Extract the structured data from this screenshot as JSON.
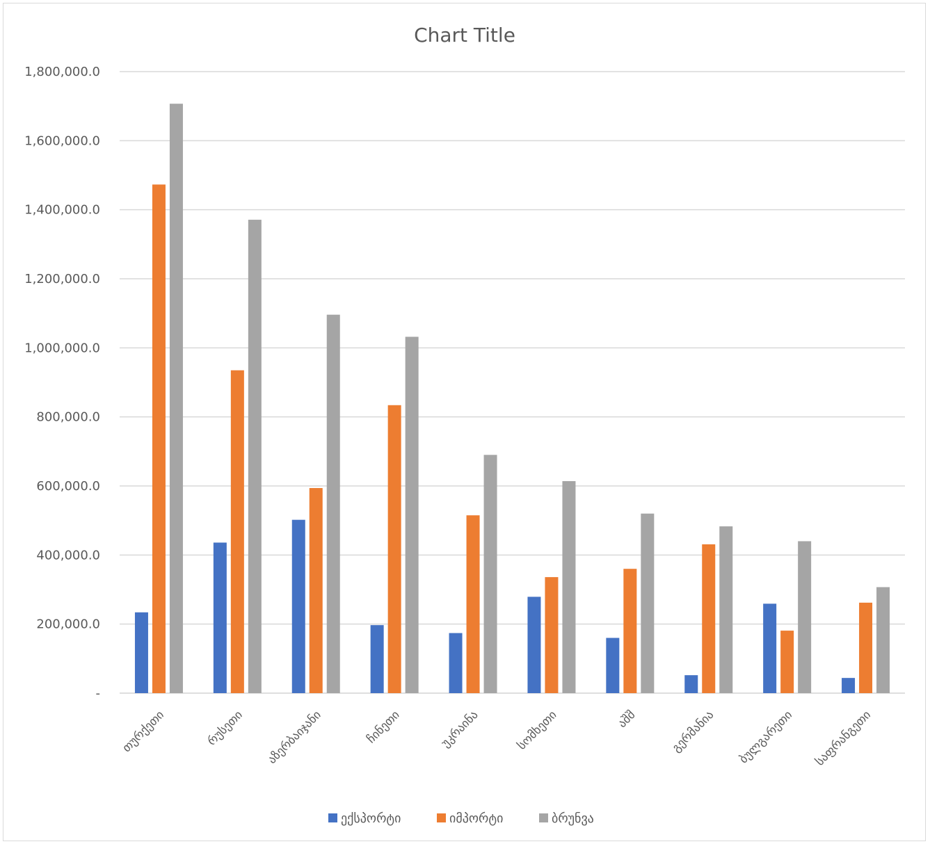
{
  "chart_data": {
    "type": "bar",
    "title": "Chart Title",
    "categories": [
      "თურქეთი",
      "რუსეთი",
      "აზერბაიჯანი",
      "ჩინეთი",
      "უკრაინა",
      "სომხეთი",
      "აშშ",
      "გერმანია",
      "ბულგარეთი",
      "საფრანგეთი"
    ],
    "series": [
      {
        "name": "ექსპორტი",
        "color": "#4472C4",
        "values": [
          234000,
          436000,
          502000,
          197000,
          174000,
          279000,
          160000,
          52000,
          259000,
          44000
        ]
      },
      {
        "name": "იმპორტი",
        "color": "#ED7D31",
        "values": [
          1473000,
          935000,
          594000,
          834000,
          515000,
          336000,
          360000,
          431000,
          181000,
          262000
        ]
      },
      {
        "name": "ბრუნვა",
        "color": "#A5A5A5",
        "values": [
          1707000,
          1371000,
          1096000,
          1032000,
          690000,
          614000,
          520000,
          483000,
          440000,
          307000
        ]
      }
    ],
    "ylim": [
      0,
      1800000
    ],
    "yticks": [
      0,
      200000,
      400000,
      600000,
      800000,
      1000000,
      1200000,
      1400000,
      1600000,
      1800000
    ],
    "ytick_labels": [
      "-",
      "200,000.0",
      "400,000.0",
      "600,000.0",
      "800,000.0",
      "1,000,000.0",
      "1,200,000.0",
      "1,400,000.0",
      "1,600,000.0",
      "1,800,000.0"
    ],
    "grid": true,
    "legend_position": "bottom",
    "gridline_color": "#d9d9d9"
  }
}
